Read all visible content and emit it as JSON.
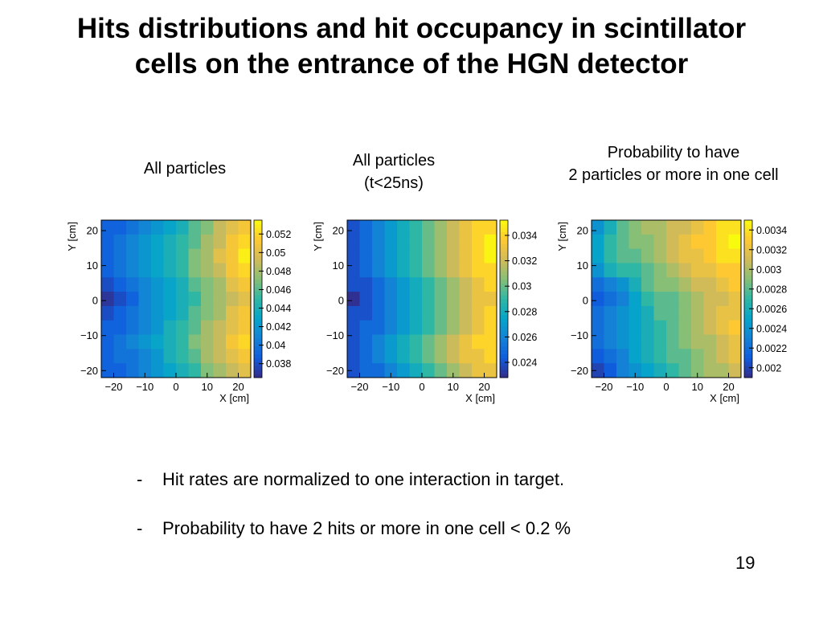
{
  "title": {
    "line1": "Hits distributions and hit occupancy in scintillator",
    "line2": "cells on the entrance of the HGN detector"
  },
  "captions": [
    {
      "lines": [
        "All particles"
      ]
    },
    {
      "lines": [
        "All particles",
        "(t<25ns)"
      ]
    },
    {
      "lines": [
        "Probability to have",
        "2 particles or more in one cell"
      ]
    }
  ],
  "bullets": [
    {
      "dash": "-",
      "text": "Hit rates are normalized to one interaction in target."
    },
    {
      "dash": "-",
      "text": "Probability to have 2 hits or more in one cell < 0.2 %"
    }
  ],
  "page_number": "19",
  "colors": {
    "colormap": [
      "#352a87",
      "#0f5cdd",
      "#1481d6",
      "#06a4ca",
      "#2eb7a4",
      "#87bf77",
      "#d1bb59",
      "#fec832",
      "#f9fb0e"
    ]
  },
  "chart_data": [
    {
      "type": "heatmap",
      "xlabel": "X [cm]",
      "ylabel": "Y [cm]",
      "xlim": [
        -24,
        24
      ],
      "ylim": [
        -22,
        23
      ],
      "xticks": [
        "-20",
        "-10",
        "0",
        "10",
        "20"
      ],
      "yticks": [
        "-20",
        "-10",
        "0",
        "10",
        "20"
      ],
      "colorbar": {
        "ticks": [
          "0.038",
          "0.04",
          "0.042",
          "0.044",
          "0.046",
          "0.048",
          "0.05",
          "0.052"
        ],
        "range": [
          0.0365,
          0.0535
        ]
      },
      "z": [
        [
          0.039,
          0.039,
          0.04,
          0.041,
          0.042,
          0.043,
          0.044,
          0.046,
          0.047,
          0.049,
          0.05,
          0.051
        ],
        [
          0.039,
          0.04,
          0.041,
          0.042,
          0.043,
          0.044,
          0.045,
          0.046,
          0.048,
          0.049,
          0.051,
          0.052
        ],
        [
          0.039,
          0.04,
          0.041,
          0.042,
          0.043,
          0.044,
          0.045,
          0.047,
          0.048,
          0.05,
          0.051,
          0.053
        ],
        [
          0.039,
          0.04,
          0.041,
          0.042,
          0.043,
          0.044,
          0.045,
          0.047,
          0.048,
          0.049,
          0.051,
          0.052
        ],
        [
          0.038,
          0.039,
          0.04,
          0.041,
          0.042,
          0.043,
          0.044,
          0.046,
          0.047,
          0.048,
          0.05,
          0.051
        ],
        [
          0.037,
          0.038,
          0.039,
          0.041,
          0.042,
          0.043,
          0.044,
          0.045,
          0.047,
          0.048,
          0.049,
          0.05
        ],
        [
          0.038,
          0.039,
          0.04,
          0.041,
          0.042,
          0.043,
          0.044,
          0.046,
          0.047,
          0.048,
          0.05,
          0.051
        ],
        [
          0.039,
          0.039,
          0.04,
          0.041,
          0.042,
          0.044,
          0.045,
          0.046,
          0.048,
          0.049,
          0.05,
          0.051
        ],
        [
          0.039,
          0.04,
          0.041,
          0.042,
          0.043,
          0.044,
          0.045,
          0.047,
          0.048,
          0.049,
          0.051,
          0.052
        ],
        [
          0.039,
          0.04,
          0.04,
          0.041,
          0.042,
          0.044,
          0.045,
          0.046,
          0.048,
          0.049,
          0.05,
          0.051
        ],
        [
          0.039,
          0.039,
          0.04,
          0.041,
          0.042,
          0.043,
          0.044,
          0.045,
          0.047,
          0.048,
          0.049,
          0.05
        ]
      ]
    },
    {
      "type": "heatmap",
      "xlabel": "X [cm]",
      "ylabel": "Y [cm]",
      "xlim": [
        -24,
        24
      ],
      "ylim": [
        -22,
        23
      ],
      "xticks": [
        "-20",
        "-10",
        "0",
        "10",
        "20"
      ],
      "yticks": [
        "-20",
        "-10",
        "0",
        "10",
        "20"
      ],
      "colorbar": {
        "ticks": [
          "0.024",
          "0.026",
          "0.028",
          "0.03",
          "0.032",
          "0.034"
        ],
        "range": [
          0.0228,
          0.0352
        ]
      },
      "z": [
        [
          0.024,
          0.025,
          0.026,
          0.027,
          0.028,
          0.029,
          0.03,
          0.031,
          0.032,
          0.033,
          0.034,
          0.034
        ],
        [
          0.024,
          0.025,
          0.026,
          0.027,
          0.028,
          0.029,
          0.03,
          0.031,
          0.032,
          0.033,
          0.034,
          0.035
        ],
        [
          0.024,
          0.025,
          0.026,
          0.027,
          0.028,
          0.029,
          0.03,
          0.031,
          0.032,
          0.033,
          0.034,
          0.035
        ],
        [
          0.024,
          0.025,
          0.026,
          0.027,
          0.028,
          0.029,
          0.03,
          0.031,
          0.032,
          0.033,
          0.034,
          0.034
        ],
        [
          0.024,
          0.024,
          0.025,
          0.026,
          0.027,
          0.028,
          0.029,
          0.03,
          0.031,
          0.032,
          0.033,
          0.034
        ],
        [
          0.023,
          0.024,
          0.025,
          0.026,
          0.027,
          0.028,
          0.029,
          0.03,
          0.031,
          0.032,
          0.033,
          0.033
        ],
        [
          0.024,
          0.024,
          0.025,
          0.026,
          0.027,
          0.028,
          0.029,
          0.03,
          0.031,
          0.032,
          0.033,
          0.034
        ],
        [
          0.024,
          0.025,
          0.025,
          0.026,
          0.027,
          0.028,
          0.029,
          0.03,
          0.031,
          0.032,
          0.033,
          0.034
        ],
        [
          0.024,
          0.025,
          0.026,
          0.027,
          0.028,
          0.029,
          0.03,
          0.031,
          0.032,
          0.033,
          0.034,
          0.034
        ],
        [
          0.024,
          0.025,
          0.026,
          0.027,
          0.028,
          0.029,
          0.03,
          0.031,
          0.032,
          0.033,
          0.033,
          0.034
        ],
        [
          0.024,
          0.025,
          0.025,
          0.026,
          0.027,
          0.028,
          0.029,
          0.03,
          0.031,
          0.032,
          0.033,
          0.033
        ]
      ]
    },
    {
      "type": "heatmap",
      "xlabel": "X [cm]",
      "ylabel": "Y [cm]",
      "xlim": [
        -24,
        24
      ],
      "ylim": [
        -22,
        23
      ],
      "xticks": [
        "-20",
        "-10",
        "0",
        "10",
        "20"
      ],
      "yticks": [
        "-20",
        "-10",
        "0",
        "10",
        "20"
      ],
      "colorbar": {
        "ticks": [
          "0.002",
          "0.0022",
          "0.0024",
          "0.0026",
          "0.0028",
          "0.003",
          "0.0032",
          "0.0034"
        ],
        "range": [
          0.0019,
          0.0035
        ]
      },
      "z": [
        [
          0.0024,
          0.0026,
          0.0028,
          0.0029,
          0.003,
          0.003,
          0.0031,
          0.0031,
          0.0032,
          0.0033,
          0.0034,
          0.0034
        ],
        [
          0.0025,
          0.0027,
          0.0028,
          0.0029,
          0.0029,
          0.003,
          0.0031,
          0.0032,
          0.0033,
          0.0033,
          0.0034,
          0.0035
        ],
        [
          0.0025,
          0.0027,
          0.0028,
          0.0028,
          0.0029,
          0.003,
          0.0031,
          0.0032,
          0.0032,
          0.0033,
          0.0034,
          0.0034
        ],
        [
          0.0024,
          0.0026,
          0.0027,
          0.0027,
          0.0028,
          0.0029,
          0.003,
          0.0031,
          0.0032,
          0.0032,
          0.0033,
          0.0033
        ],
        [
          0.0022,
          0.0023,
          0.0024,
          0.0026,
          0.0028,
          0.0029,
          0.0029,
          0.003,
          0.0031,
          0.0031,
          0.0032,
          0.0033
        ],
        [
          0.0021,
          0.0022,
          0.0023,
          0.0025,
          0.0027,
          0.0028,
          0.0028,
          0.0029,
          0.003,
          0.0031,
          0.0031,
          0.0032
        ],
        [
          0.0022,
          0.0023,
          0.0024,
          0.0025,
          0.0026,
          0.0028,
          0.0028,
          0.0029,
          0.003,
          0.0031,
          0.0032,
          0.0032
        ],
        [
          0.0022,
          0.0023,
          0.0024,
          0.0025,
          0.0026,
          0.0027,
          0.0028,
          0.0029,
          0.003,
          0.0031,
          0.0032,
          0.0033
        ],
        [
          0.0022,
          0.0023,
          0.0024,
          0.0025,
          0.0026,
          0.0027,
          0.0028,
          0.0029,
          0.003,
          0.003,
          0.0031,
          0.0032
        ],
        [
          0.0021,
          0.0022,
          0.0023,
          0.0025,
          0.0026,
          0.0027,
          0.0028,
          0.0028,
          0.0029,
          0.003,
          0.0031,
          0.0032
        ],
        [
          0.002,
          0.0021,
          0.0023,
          0.0024,
          0.0025,
          0.0026,
          0.0027,
          0.0028,
          0.0029,
          0.003,
          0.003,
          0.0031
        ]
      ]
    }
  ]
}
